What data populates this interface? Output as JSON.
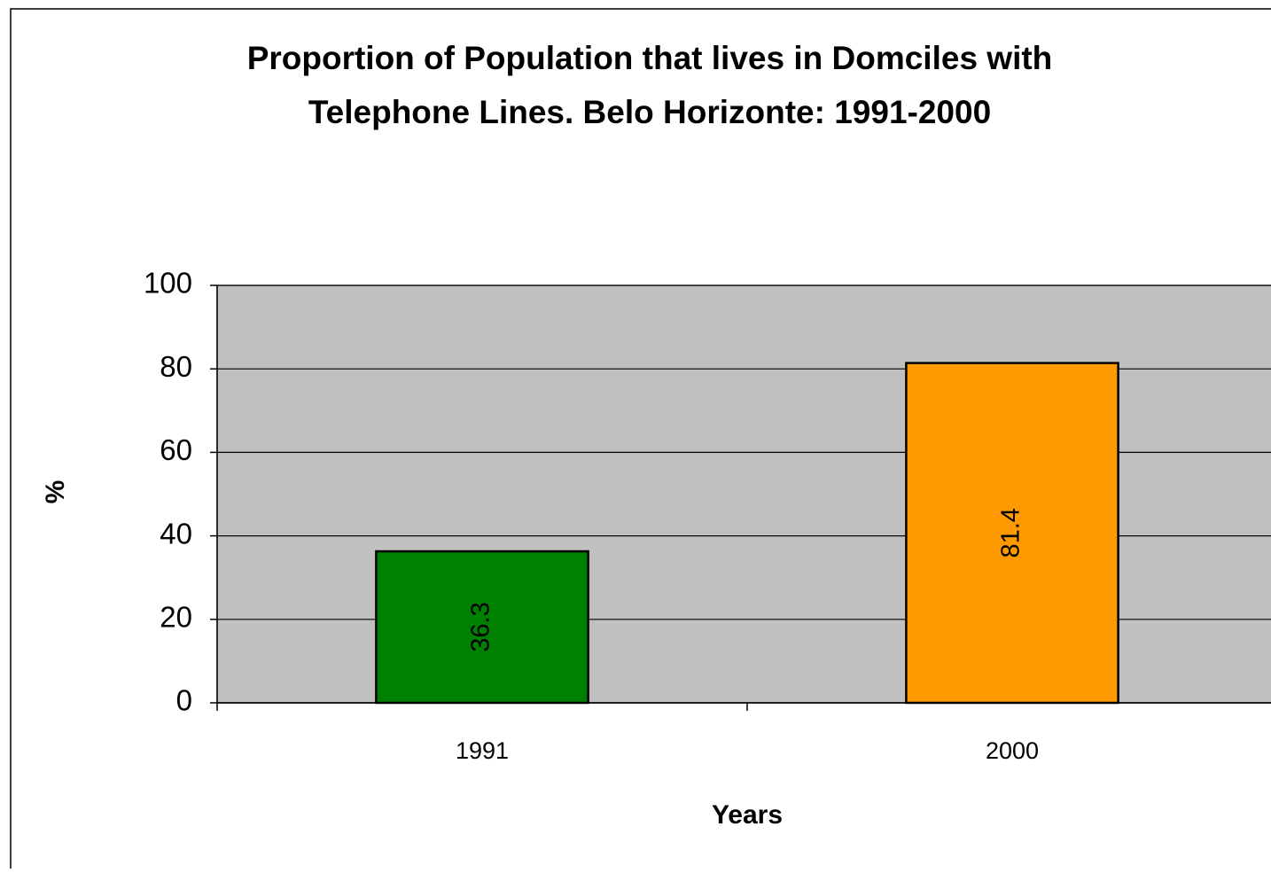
{
  "chart_data": {
    "type": "bar",
    "title": [
      "Proportion of Population that lives in Domciles with",
      "Telephone Lines. Belo Horizonte: 1991-2000"
    ],
    "categories": [
      "1991",
      "2000"
    ],
    "values": [
      36.3,
      81.4
    ],
    "colors": [
      "#008000",
      "#ff9900"
    ],
    "xlabel": "Years",
    "ylabel": "%",
    "ylim": [
      0,
      100
    ],
    "yticks": [
      0,
      20,
      40,
      60,
      80,
      100
    ],
    "grid": true
  }
}
